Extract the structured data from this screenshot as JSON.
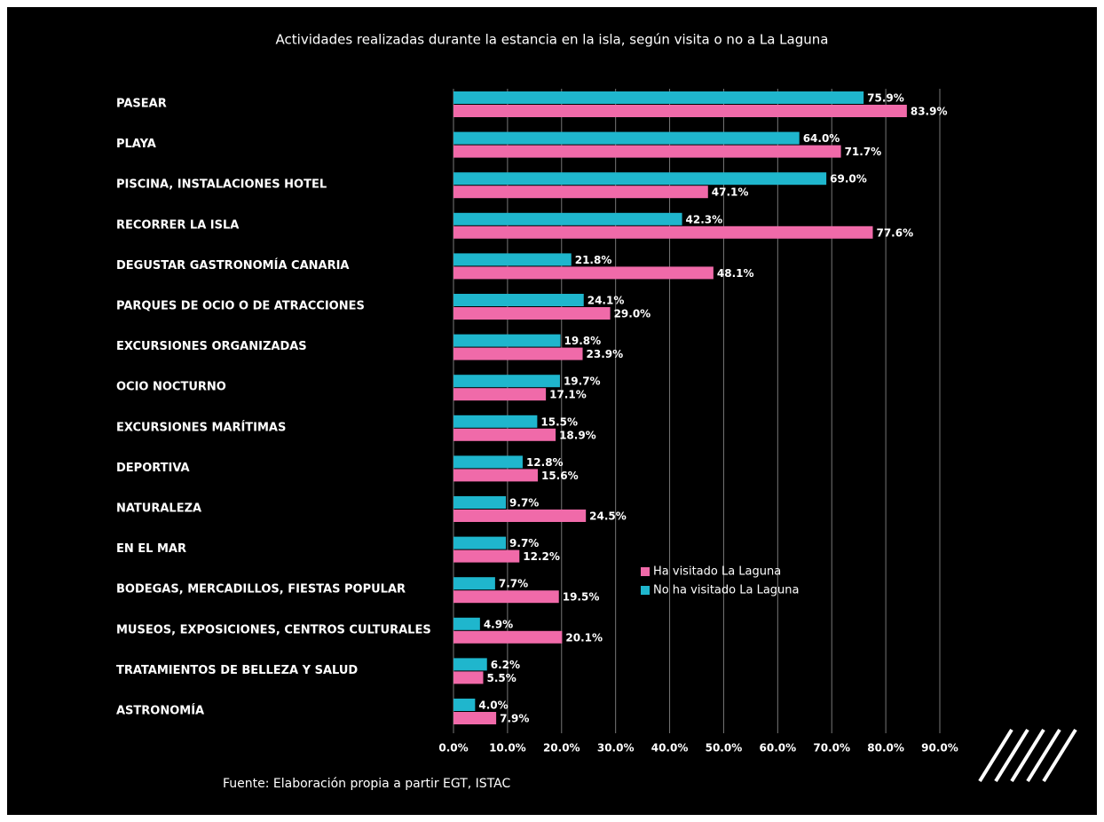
{
  "chart_data": {
    "type": "hbar",
    "title": "Actividades realizadas durante la estancia en la isla, según visita o no a La Laguna",
    "source": "Fuente: Elaboración propia a partir EGT, ISTAC",
    "categories": [
      "PASEAR",
      "PLAYA",
      "PISCINA, INSTALACIONES HOTEL",
      "RECORRER LA ISLA",
      "DEGUSTAR GASTRONOMÍA CANARIA",
      "PARQUES DE OCIO O DE ATRACCIONES",
      "EXCURSIONES ORGANIZADAS",
      "OCIO NOCTURNO",
      "EXCURSIONES MARÍTIMAS",
      "DEPORTIVA",
      "NATURALEZA",
      "EN EL MAR",
      "BODEGAS, MERCADILLOS, FIESTAS POPULAR",
      "MUSEOS, EXPOSICIONES, CENTROS CULTURALES",
      "TRATAMIENTOS DE BELLEZA Y SALUD",
      "ASTRONOMÍA"
    ],
    "series": [
      {
        "name": "Ha visitado La Laguna",
        "color": "#f06aa9",
        "values": [
          83.9,
          71.7,
          47.1,
          77.6,
          48.1,
          29.0,
          23.9,
          17.1,
          18.9,
          15.6,
          24.5,
          12.2,
          19.5,
          20.1,
          5.5,
          7.9
        ],
        "value_labels": [
          "83.9%",
          "71.7%",
          "47.1%",
          "77.6%",
          "48.1%",
          "29.0%",
          "23.9%",
          "17.1%",
          "18.9%",
          "15.6%",
          "24.5%",
          "12.2%",
          "19.5%",
          "20.1%",
          "5.5%",
          "7.9%"
        ]
      },
      {
        "name": "No ha visitado La Laguna",
        "color": "#1fb6cd",
        "values": [
          75.9,
          64.0,
          69.0,
          42.3,
          21.8,
          24.1,
          19.8,
          19.7,
          15.5,
          12.8,
          9.7,
          9.7,
          7.7,
          4.9,
          6.2,
          4.0
        ],
        "value_labels": [
          "75.9%",
          "64.0%",
          "69.0%",
          "42.3%",
          "21.8%",
          "24.1%",
          "19.8%",
          "19.7%",
          "15.5%",
          "12.8%",
          "9.7%",
          "9.7%",
          "7.7%",
          "4.9%",
          "6.2%",
          "4.0%"
        ]
      }
    ],
    "xlim": [
      0,
      90
    ],
    "xticks": [
      {
        "value": 0,
        "label": "0.0%"
      },
      {
        "value": 10,
        "label": "10.0%"
      },
      {
        "value": 20,
        "label": "20.0%"
      },
      {
        "value": 30,
        "label": "30.0%"
      },
      {
        "value": 40,
        "label": "40.0%"
      },
      {
        "value": 50,
        "label": "50.0%"
      },
      {
        "value": 60,
        "label": "60.0%"
      },
      {
        "value": 70,
        "label": "70.0%"
      },
      {
        "value": 80,
        "label": "80.0%"
      },
      {
        "value": 90,
        "label": "90.0%"
      }
    ],
    "grid": true
  }
}
